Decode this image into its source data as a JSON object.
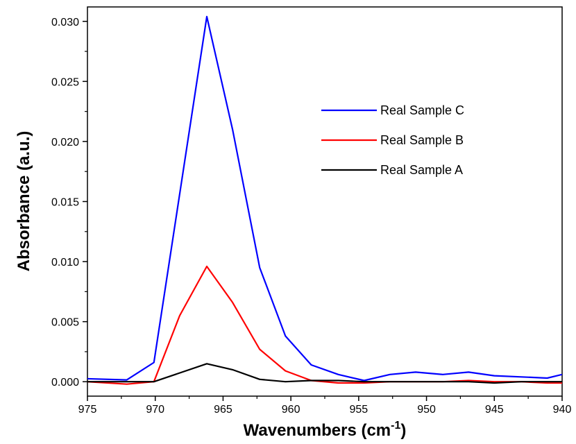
{
  "chart_data": {
    "type": "line",
    "xlabel": "Wavenumbers (cm",
    "xlabel_superscript": "-1",
    "xlabel_suffix": ")",
    "ylabel": "Absorbance (a.u.)",
    "xlim": [
      975,
      940
    ],
    "ylim": [
      -0.0012,
      0.0312
    ],
    "x_reversed": true,
    "grid": false,
    "legend_position": "top-right",
    "x_ticks": [
      975,
      970,
      965,
      960,
      955,
      950,
      945,
      940
    ],
    "x_tick_labels": [
      "975",
      "970",
      "965",
      "960",
      "955",
      "950",
      "945",
      "940"
    ],
    "y_ticks": [
      0.0,
      0.005,
      0.01,
      0.015,
      0.02,
      0.025,
      0.03
    ],
    "y_tick_labels": [
      "0.000",
      "0.005",
      "0.010",
      "0.015",
      "0.020",
      "0.025",
      "0.030"
    ],
    "series": [
      {
        "name": "Real Sample C",
        "color": "#0000ff",
        "x": [
          975,
          972.1,
          970.1,
          966.2,
          964.3,
          962.3,
          960.4,
          958.5,
          956.5,
          954.6,
          952.7,
          950.8,
          948.8,
          946.9,
          945.0,
          943.0,
          941.1,
          940
        ],
        "y": [
          0.00025,
          0.00015,
          0.0016,
          0.0304,
          0.021,
          0.0095,
          0.0038,
          0.0014,
          0.0006,
          0.0001,
          0.0006,
          0.0008,
          0.0006,
          0.0008,
          0.0005,
          0.0004,
          0.0003,
          0.0006
        ]
      },
      {
        "name": "Real Sample B",
        "color": "#ff0000",
        "x": [
          975,
          972.1,
          970.1,
          968.2,
          966.2,
          964.3,
          962.3,
          960.4,
          958.5,
          956.5,
          954.6,
          952.7,
          950.8,
          948.8,
          946.9,
          945.0,
          943.0,
          941.1,
          940
        ],
        "y": [
          0.0,
          -0.0002,
          0.0,
          0.0055,
          0.0096,
          0.0066,
          0.0027,
          0.0009,
          0.0001,
          -0.0001,
          -0.0001,
          0.0,
          0.0,
          0.0,
          0.0001,
          0.0,
          0.0,
          -0.0001,
          -0.0001
        ]
      },
      {
        "name": "Real Sample A",
        "color": "#000000",
        "x": [
          975,
          972.1,
          970.1,
          966.2,
          964.3,
          962.3,
          960.4,
          958.5,
          956.5,
          954.6,
          952.7,
          950.8,
          948.8,
          946.9,
          945.0,
          943.0,
          941.1,
          940
        ],
        "y": [
          0.0,
          0.0,
          0.0,
          0.0015,
          0.001,
          0.0002,
          0.0,
          0.0001,
          0.0001,
          0.0,
          0.0,
          0.0,
          0.0,
          0.0,
          -0.0001,
          0.0,
          0.0,
          0.0
        ]
      }
    ]
  }
}
